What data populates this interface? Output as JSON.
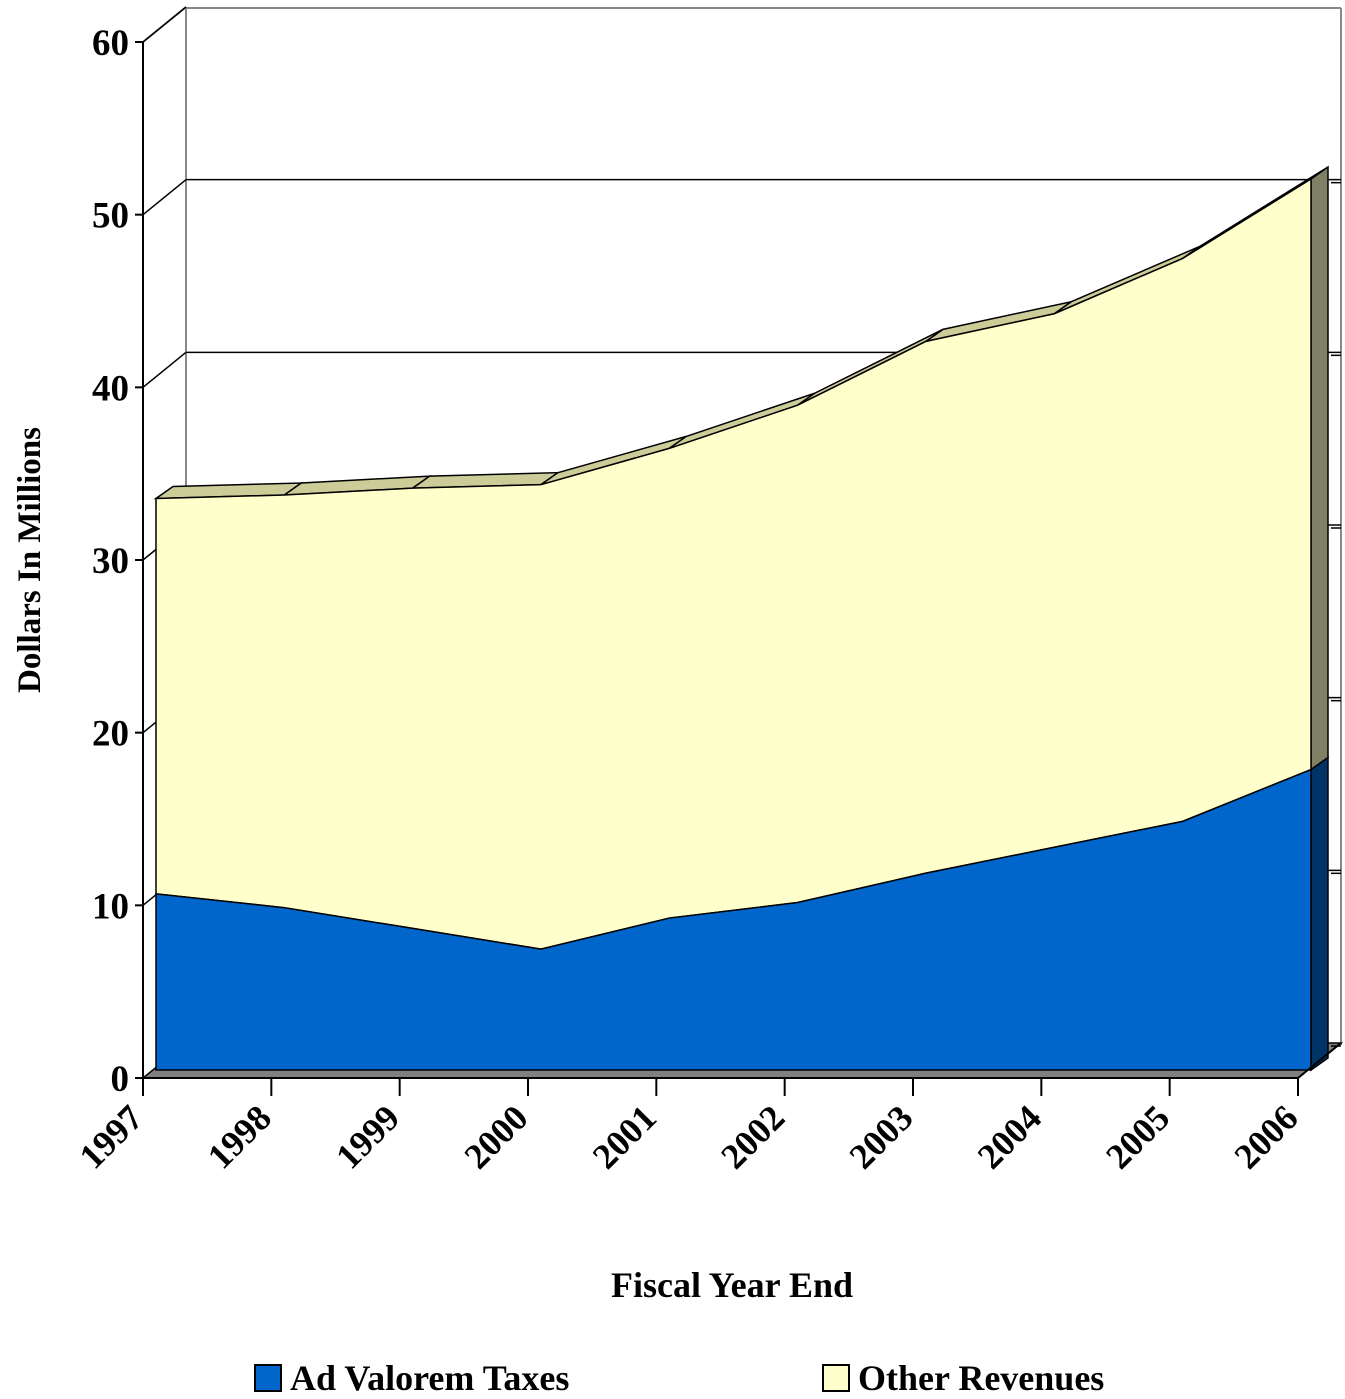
{
  "chart_data": {
    "type": "area",
    "stacked": true,
    "three_d": true,
    "title": "",
    "xlabel": "Fiscal Year End",
    "ylabel": "Dollars In Millions",
    "categories": [
      "1997",
      "1998",
      "1999",
      "2000",
      "2001",
      "2002",
      "2003",
      "2004",
      "2005",
      "2006"
    ],
    "y_ticks": [
      "0",
      "10",
      "20",
      "30",
      "40",
      "50",
      "60"
    ],
    "ylim": [
      0,
      60
    ],
    "grid": true,
    "legend_position": "bottom",
    "series": [
      {
        "name": "Ad Valorem Taxes",
        "values": [
          10.2,
          9.4,
          8.2,
          7.0,
          8.8,
          9.7,
          11.4,
          12.9,
          14.4,
          17.4
        ],
        "color": "#0066cc"
      },
      {
        "name": "Other Revenues",
        "values": [
          22.9,
          23.9,
          25.5,
          26.9,
          27.2,
          28.8,
          30.8,
          30.9,
          32.6,
          34.2
        ],
        "color": "#ffffcc"
      }
    ]
  }
}
